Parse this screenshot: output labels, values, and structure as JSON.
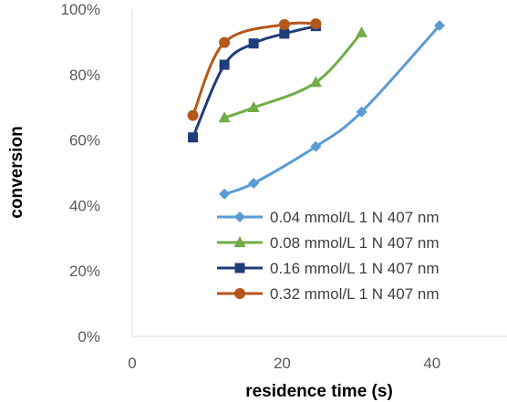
{
  "chart_data": {
    "type": "scatter",
    "title": "",
    "xlabel": "residence time (s)",
    "ylabel": "conversion",
    "xlim": [
      0,
      50
    ],
    "ylim": [
      0,
      100
    ],
    "x_ticks": [
      {
        "value": 0,
        "label": "0"
      },
      {
        "value": 20,
        "label": "20"
      },
      {
        "value": 40,
        "label": "40"
      }
    ],
    "y_ticks": [
      {
        "value": 0,
        "label": "0%"
      },
      {
        "value": 20,
        "label": "20%"
      },
      {
        "value": 40,
        "label": "40%"
      },
      {
        "value": 60,
        "label": "60%"
      },
      {
        "value": 80,
        "label": "80%"
      },
      {
        "value": 100,
        "label": "100%"
      }
    ],
    "grid": false,
    "smooth_lines": true,
    "legend_position": "bottom-right",
    "series": [
      {
        "name": "0.04 mmol/L 1 N 407 nm",
        "color": "#5B9BD5",
        "marker": "diamond",
        "x": [
          12.3,
          16.2,
          24.5,
          30.6,
          41.0
        ],
        "y": [
          43.5,
          46.8,
          58.0,
          68.6,
          95.0
        ]
      },
      {
        "name": "0.08 mmol/L 1 N 407 nm",
        "color": "#70AD47",
        "marker": "triangle",
        "x": [
          12.3,
          16.2,
          24.5,
          30.6
        ],
        "y": [
          66.8,
          69.9,
          77.6,
          92.8
        ]
      },
      {
        "name": "0.16 mmol/L 1 N 407 nm",
        "color": "#1F3D7A",
        "marker": "square",
        "x": [
          8.1,
          12.3,
          16.2,
          20.3,
          24.5
        ],
        "y": [
          60.8,
          83.0,
          89.5,
          92.5,
          94.8
        ]
      },
      {
        "name": "0.32 mmol/L 1 N 407 nm",
        "color": "#B5561B",
        "marker": "circle",
        "x": [
          8.1,
          12.3,
          20.3,
          24.5
        ],
        "y": [
          67.5,
          89.8,
          95.3,
          95.5
        ]
      }
    ]
  }
}
